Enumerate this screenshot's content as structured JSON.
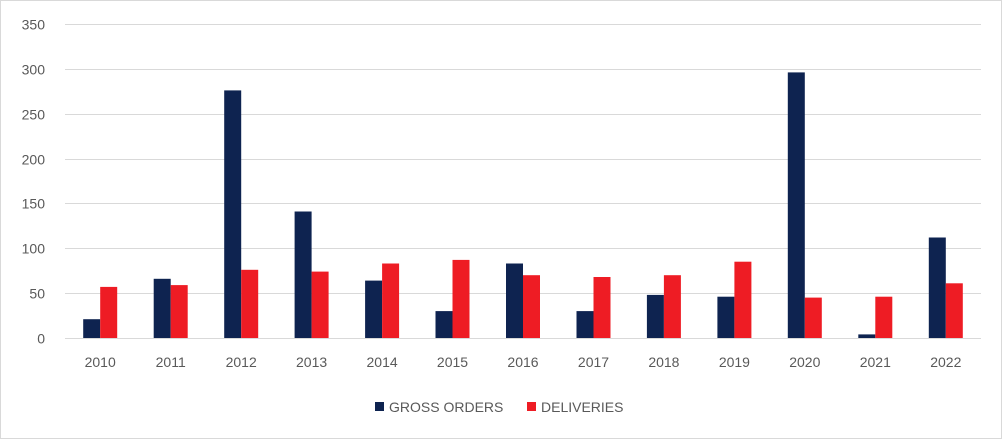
{
  "chart_data": {
    "type": "bar",
    "categories": [
      "2010",
      "2011",
      "2012",
      "2013",
      "2014",
      "2015",
      "2016",
      "2017",
      "2018",
      "2019",
      "2020",
      "2021",
      "2022"
    ],
    "series": [
      {
        "name": "GROSS ORDERS",
        "color": "#0e2350",
        "values": [
          21,
          66,
          276,
          141,
          64,
          30,
          83,
          30,
          48,
          46,
          296,
          4,
          112
        ]
      },
      {
        "name": "DELIVERIES",
        "color": "#ee1c24",
        "values": [
          57,
          59,
          76,
          74,
          83,
          87,
          70,
          68,
          70,
          85,
          45,
          46,
          61
        ]
      }
    ],
    "title": "",
    "xlabel": "",
    "ylabel": "",
    "ylim": [
      0,
      350
    ],
    "yticks": [
      0,
      50,
      100,
      150,
      200,
      250,
      300,
      350
    ],
    "grid": true,
    "gridline_color": "#d9d9d9",
    "legend": "bottom-center"
  }
}
